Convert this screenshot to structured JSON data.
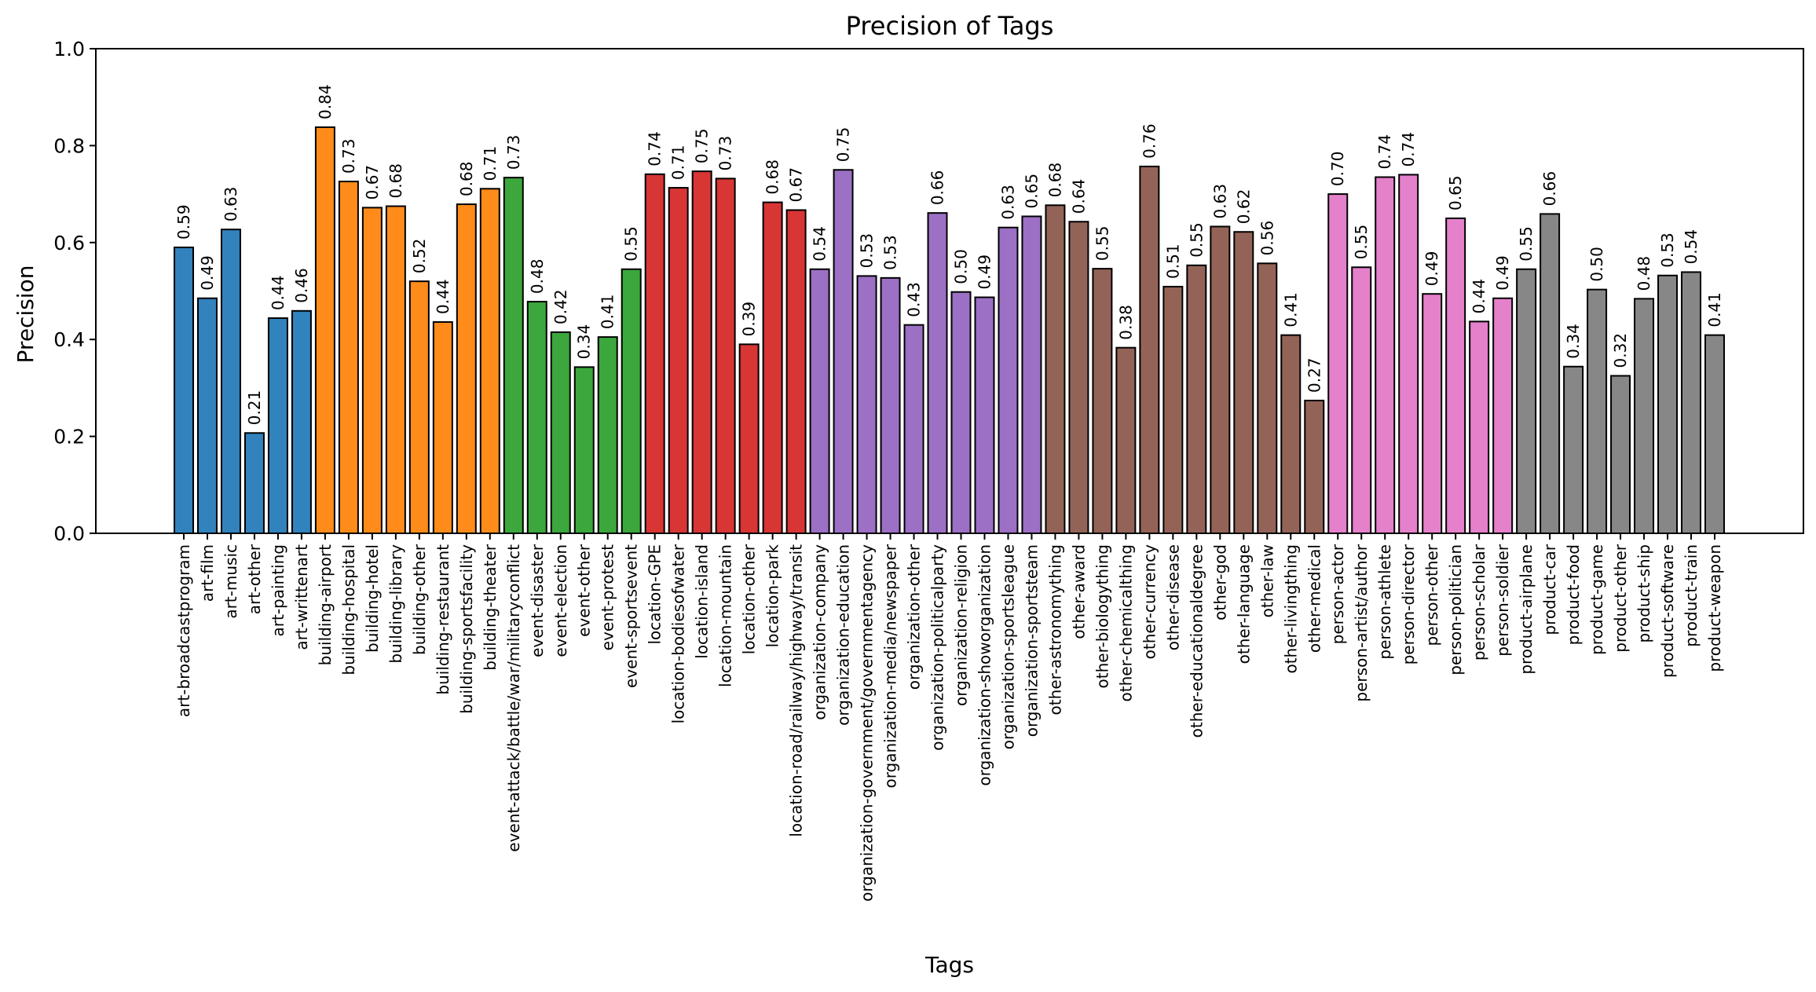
{
  "chart_data": {
    "type": "bar",
    "title": "Precision of Tags",
    "xlabel": "Tags",
    "ylabel": "Precision",
    "ylim": [
      0,
      1.0
    ],
    "yticks": [
      "0.0",
      "0.2",
      "0.4",
      "0.6",
      "0.8",
      "1.0"
    ],
    "grid": false,
    "categories": [
      "art-broadcastprogram",
      "art-film",
      "art-music",
      "art-other",
      "art-painting",
      "art-writtenart",
      "building-airport",
      "building-hospital",
      "building-hotel",
      "building-library",
      "building-other",
      "building-restaurant",
      "building-sportsfacility",
      "building-theater",
      "event-attack/battle/war/militaryconflict",
      "event-disaster",
      "event-election",
      "event-other",
      "event-protest",
      "event-sportsevent",
      "location-GPE",
      "location-bodiesofwater",
      "location-island",
      "location-mountain",
      "location-other",
      "location-park",
      "location-road/railway/highway/transit",
      "organization-company",
      "organization-education",
      "organization-government/governmentagency",
      "organization-media/newspaper",
      "organization-other",
      "organization-politicalparty",
      "organization-religion",
      "organization-showorganization",
      "organization-sportsleague",
      "organization-sportsteam",
      "other-astronomything",
      "other-award",
      "other-biologything",
      "other-chemicalthing",
      "other-currency",
      "other-disease",
      "other-educationaldegree",
      "other-god",
      "other-language",
      "other-law",
      "other-livingthing",
      "other-medical",
      "person-actor",
      "person-artist/author",
      "person-athlete",
      "person-director",
      "person-other",
      "person-politician",
      "person-scholar",
      "person-soldier",
      "product-airplane",
      "product-car",
      "product-food",
      "product-game",
      "product-other",
      "product-ship",
      "product-software",
      "product-train",
      "product-weapon"
    ],
    "values": [
      0.59,
      0.485,
      0.627,
      0.207,
      0.444,
      0.459,
      0.838,
      0.726,
      0.672,
      0.675,
      0.52,
      0.436,
      0.679,
      0.711,
      0.734,
      0.478,
      0.415,
      0.343,
      0.405,
      0.545,
      0.741,
      0.713,
      0.747,
      0.732,
      0.39,
      0.683,
      0.667,
      0.545,
      0.75,
      0.531,
      0.527,
      0.43,
      0.661,
      0.498,
      0.487,
      0.631,
      0.654,
      0.677,
      0.643,
      0.546,
      0.383,
      0.757,
      0.509,
      0.553,
      0.633,
      0.622,
      0.557,
      0.409,
      0.274,
      0.7,
      0.549,
      0.735,
      0.74,
      0.494,
      0.65,
      0.437,
      0.485,
      0.545,
      0.659,
      0.344,
      0.503,
      0.325,
      0.484,
      0.532,
      0.539,
      0.409
    ],
    "value_labels": [
      "0.59",
      "0.49",
      "0.63",
      "0.21",
      "0.44",
      "0.46",
      "0.84",
      "0.73",
      "0.67",
      "0.68",
      "0.52",
      "0.44",
      "0.68",
      "0.71",
      "0.73",
      "0.48",
      "0.42",
      "0.34",
      "0.41",
      "0.55",
      "0.74",
      "0.71",
      "0.75",
      "0.73",
      "0.39",
      "0.68",
      "0.67",
      "0.54",
      "0.75",
      "0.53",
      "0.53",
      "0.43",
      "0.66",
      "0.50",
      "0.49",
      "0.63",
      "0.65",
      "0.68",
      "0.64",
      "0.55",
      "0.38",
      "0.76",
      "0.51",
      "0.55",
      "0.63",
      "0.62",
      "0.56",
      "0.41",
      "0.27",
      "0.70",
      "0.55",
      "0.74",
      "0.74",
      "0.49",
      "0.65",
      "0.44",
      "0.49",
      "0.55",
      "0.66",
      "0.34",
      "0.50",
      "0.32",
      "0.48",
      "0.53",
      "0.54",
      "0.41"
    ],
    "group_colors": {
      "art": "#3182bd",
      "building": "#ff8c1a",
      "event": "#3ca73c",
      "location": "#d83535",
      "organization": "#9c70c4",
      "other": "#946358",
      "person": "#e580cb",
      "product": "#878787"
    },
    "bar_edge_color": "#000000"
  }
}
